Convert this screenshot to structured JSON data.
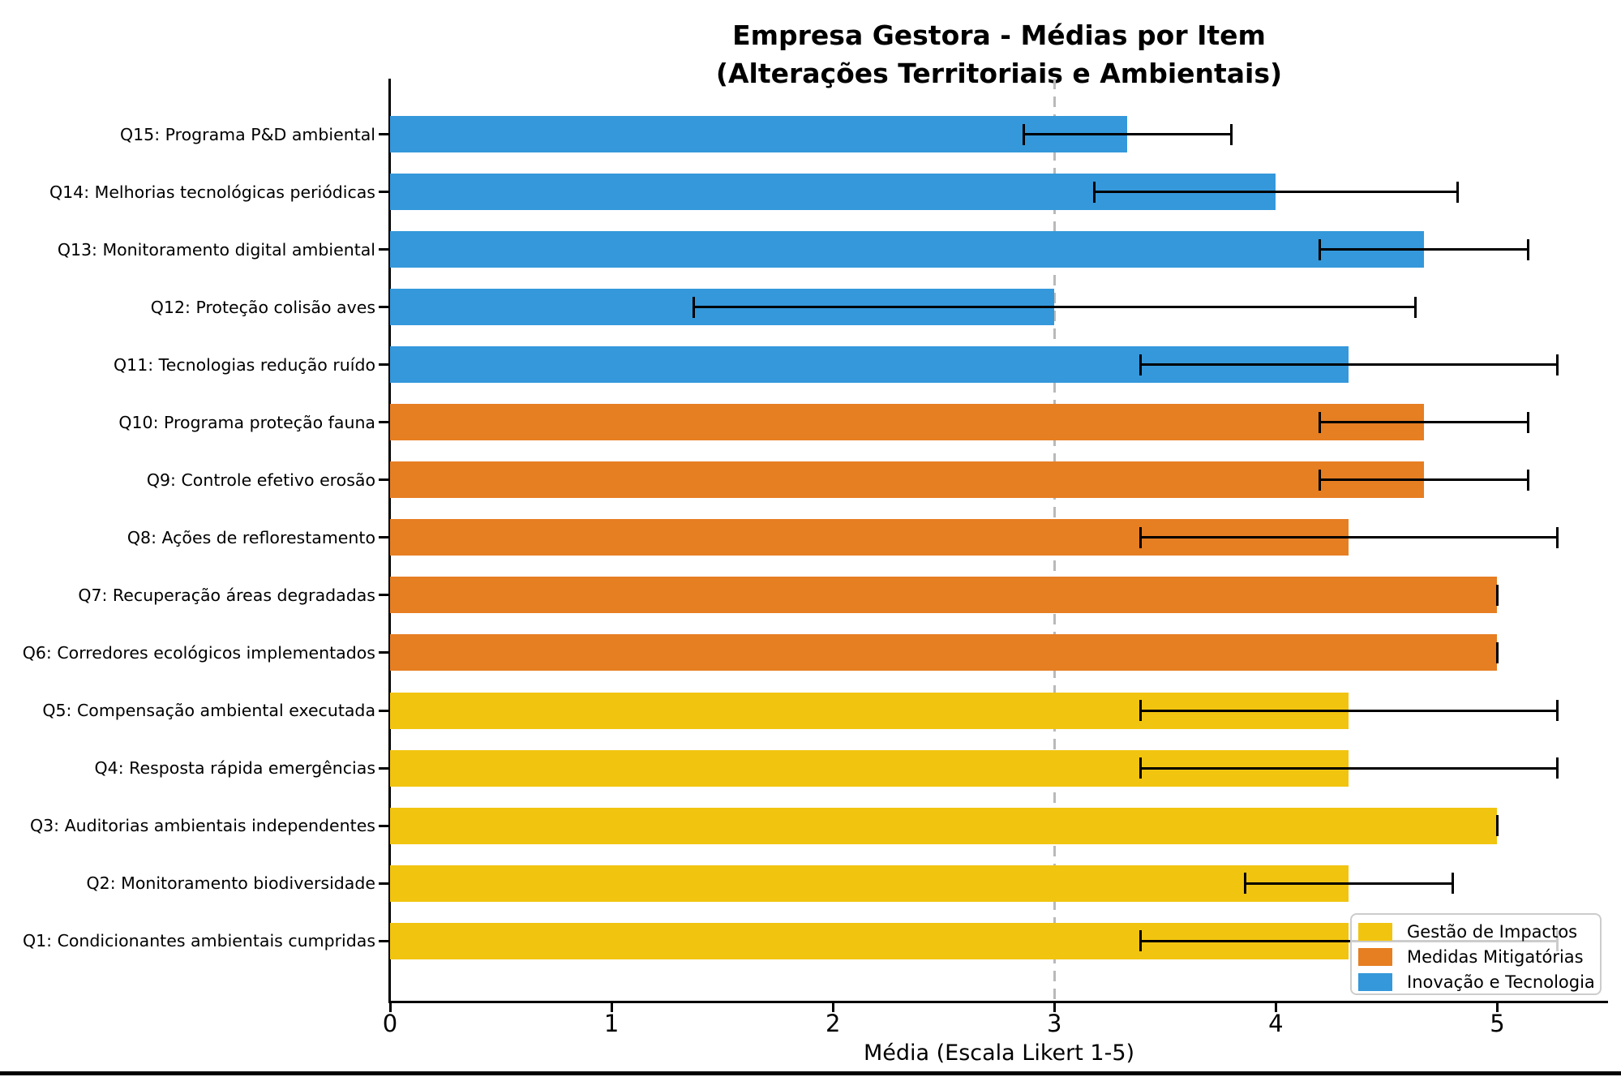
{
  "title": {
    "line1": "Empresa Gestora - Médias por Item",
    "line2": "(Alterações Territoriais e Ambientais)"
  },
  "chart_data": {
    "type": "bar",
    "orientation": "horizontal",
    "title_lines": [
      "Empresa Gestora - Médias por Item",
      "(Alterações Territoriais e Ambientais)"
    ],
    "xlabel": "Média (Escala Likert 1-5)",
    "ylabel": "",
    "xlim": [
      0,
      5.5
    ],
    "x_ticks": [
      "0",
      "1",
      "2",
      "3",
      "4",
      "5"
    ],
    "grid": false,
    "reference_line": {
      "x": 3,
      "style": "dashed",
      "color": "#b9b9b9"
    },
    "error_bar_color": "#000000",
    "legend": {
      "position": "lower-right",
      "entries": [
        {
          "label": "Gestão de Impactos",
          "color": "#f1c40f"
        },
        {
          "label": "Medidas Mitigatórias",
          "color": "#e67e22"
        },
        {
          "label": "Inovação e Tecnologia",
          "color": "#3498db"
        }
      ]
    },
    "items": [
      {
        "label": "Q15: Programa P&D ambiental",
        "group": "Inovação e Tecnologia",
        "value": 3.33,
        "error": 0.47
      },
      {
        "label": "Q14: Melhorias tecnológicas periódicas",
        "group": "Inovação e Tecnologia",
        "value": 4.0,
        "error": 0.82
      },
      {
        "label": "Q13: Monitoramento digital ambiental",
        "group": "Inovação e Tecnologia",
        "value": 4.67,
        "error": 0.47
      },
      {
        "label": "Q12: Proteção colisão aves",
        "group": "Inovação e Tecnologia",
        "value": 3.0,
        "error": 1.63
      },
      {
        "label": "Q11: Tecnologias redução ruído",
        "group": "Inovação e Tecnologia",
        "value": 4.33,
        "error": 0.94
      },
      {
        "label": "Q10: Programa proteção fauna",
        "group": "Medidas Mitigatórias",
        "value": 4.67,
        "error": 0.47
      },
      {
        "label": "Q9: Controle efetivo erosão",
        "group": "Medidas Mitigatórias",
        "value": 4.67,
        "error": 0.47
      },
      {
        "label": "Q8: Ações de reflorestamento",
        "group": "Medidas Mitigatórias",
        "value": 4.33,
        "error": 0.94
      },
      {
        "label": "Q7: Recuperação áreas degradadas",
        "group": "Medidas Mitigatórias",
        "value": 5.0,
        "error": 0.0
      },
      {
        "label": "Q6: Corredores ecológicos implementados",
        "group": "Medidas Mitigatórias",
        "value": 5.0,
        "error": 0.0
      },
      {
        "label": "Q5: Compensação ambiental executada",
        "group": "Gestão de Impactos",
        "value": 4.33,
        "error": 0.94
      },
      {
        "label": "Q4: Resposta rápida emergências",
        "group": "Gestão de Impactos",
        "value": 4.33,
        "error": 0.94
      },
      {
        "label": "Q3: Auditorias ambientais independentes",
        "group": "Gestão de Impactos",
        "value": 5.0,
        "error": 0.0
      },
      {
        "label": "Q2: Monitoramento biodiversidade",
        "group": "Gestão de Impactos",
        "value": 4.33,
        "error": 0.47
      },
      {
        "label": "Q1: Condicionantes ambientais cumpridas",
        "group": "Gestão de Impactos",
        "value": 4.33,
        "error": 0.94
      }
    ],
    "group_colors": {
      "Gestão de Impactos": "#f1c40f",
      "Medidas Mitigatórias": "#e67e22",
      "Inovação e Tecnologia": "#3498db"
    }
  }
}
